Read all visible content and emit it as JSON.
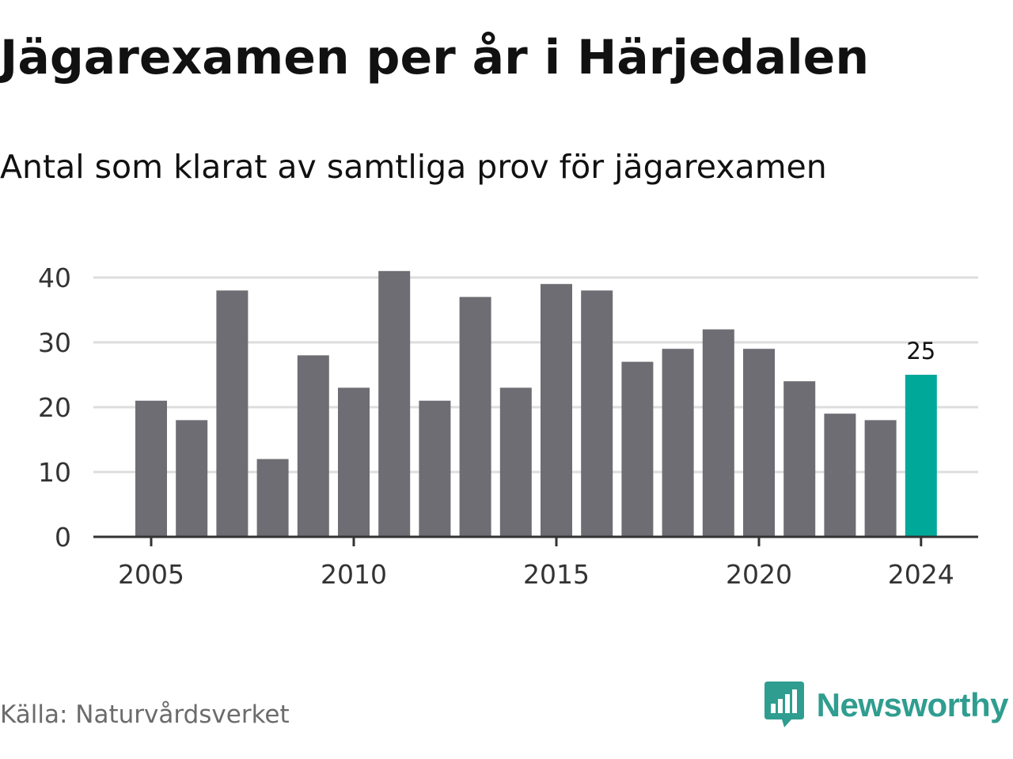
{
  "header": {
    "title": "Jägarexamen per år i Härjedalen",
    "subtitle": "Antal som klarat av samtliga prov för jägarexamen"
  },
  "footer": {
    "source": "Källa: Naturvårdsverket",
    "brand": "Newsworthy",
    "brand_icon": "chart-speech-bubble-icon",
    "brand_color": "#2f9d8f"
  },
  "chart_data": {
    "type": "bar",
    "title": "Jägarexamen per år i Härjedalen",
    "subtitle": "Antal som klarat av samtliga prov för jägarexamen",
    "categories": [
      "2005",
      "2006",
      "2007",
      "2008",
      "2009",
      "2010",
      "2011",
      "2012",
      "2013",
      "2014",
      "2015",
      "2016",
      "2017",
      "2018",
      "2019",
      "2020",
      "2021",
      "2022",
      "2023",
      "2024"
    ],
    "values": [
      21,
      18,
      38,
      12,
      28,
      23,
      41,
      21,
      37,
      23,
      39,
      38,
      27,
      29,
      32,
      29,
      24,
      19,
      18,
      25
    ],
    "x_tick_labels": [
      "2005",
      "2010",
      "2015",
      "2020",
      "2024"
    ],
    "y_ticks": [
      0,
      10,
      20,
      30,
      40
    ],
    "ylim": [
      0,
      40
    ],
    "grid": true,
    "colors": {
      "bar": "#6e6d73",
      "highlight": "#00a89a",
      "grid": "#dddddd",
      "axis": "#333333"
    },
    "highlight": {
      "category": "2024",
      "label": "25"
    }
  }
}
